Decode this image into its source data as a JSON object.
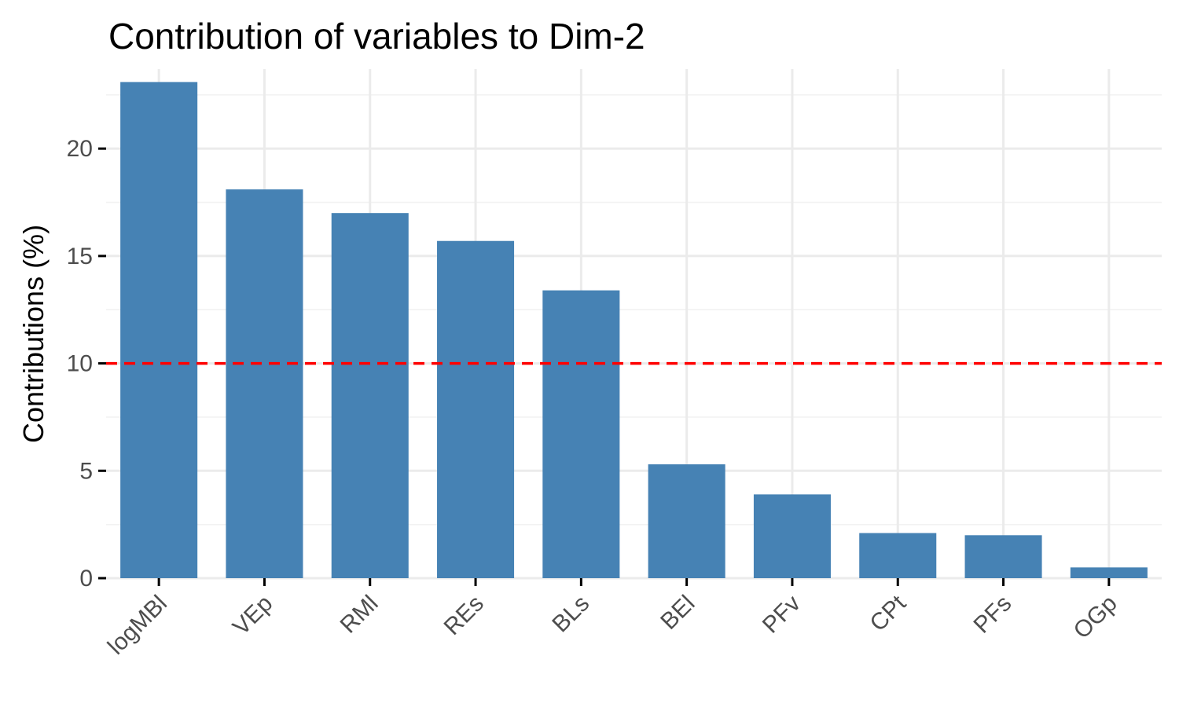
{
  "chart_data": {
    "type": "bar",
    "title": "Contribution of variables to Dim-2",
    "xlabel": "",
    "ylabel": "Contributions (%)",
    "categories": [
      "logMBl",
      "VEp",
      "RMl",
      "REs",
      "BLs",
      "BEl",
      "PFv",
      "CPt",
      "PFs",
      "OGp"
    ],
    "values": [
      23.1,
      18.1,
      17.0,
      15.7,
      13.4,
      5.3,
      3.9,
      2.1,
      2.0,
      0.5
    ],
    "ylim": [
      0,
      23.7
    ],
    "yticks": [
      "0",
      "5",
      "10",
      "15",
      "20"
    ],
    "reference_line": {
      "value": 10,
      "style": "dashed",
      "color": "#ff0000"
    },
    "bar_color": "#4682b4",
    "grid": true,
    "legend": "none"
  }
}
